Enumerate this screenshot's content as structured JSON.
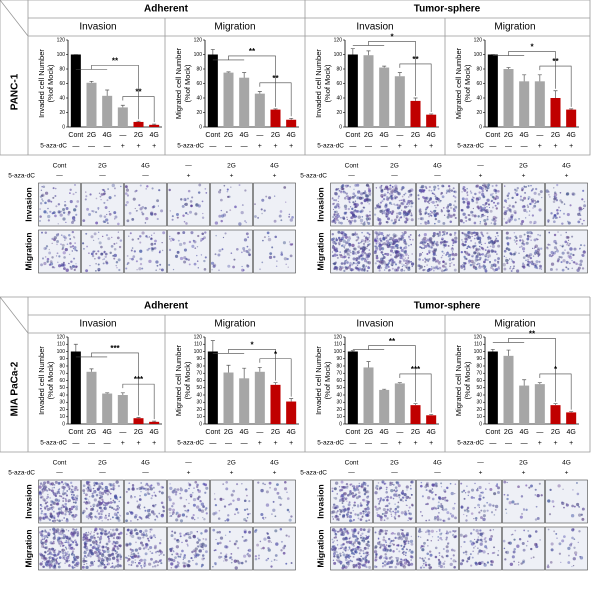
{
  "panels": [
    {
      "cell_line": "PANC-1",
      "conditions": [
        "Adherent",
        "Tumor-sphere"
      ]
    },
    {
      "cell_line": "MIA PaCa-2",
      "conditions": [
        "Adherent",
        "Tumor-sphere"
      ]
    }
  ],
  "images": {
    "columns": [
      "Cont",
      "2G",
      "4G",
      "—",
      "2G",
      "4G"
    ],
    "treatment_label": "5-aza-dC",
    "treatment": [
      "—",
      "—",
      "—",
      "+",
      "+",
      "+"
    ],
    "rows": [
      "Invasion",
      "Migration"
    ]
  },
  "chart_data": [
    {
      "type": "bar",
      "title": "Invasion",
      "ylabel": [
        "Invaded cell Number",
        "(%of Mock)"
      ],
      "categories": [
        "Cont",
        "2G",
        "4G",
        "—",
        "2G",
        "4G"
      ],
      "treatment_label": "5-aza-dC",
      "treatment": [
        "—",
        "—",
        "—",
        "+",
        "+",
        "+"
      ],
      "values": [
        100,
        61,
        43,
        27,
        7,
        3
      ],
      "errors": [
        0,
        2,
        8,
        3,
        1,
        1
      ],
      "colors": [
        "#000000",
        "#a6a6a6",
        "#a6a6a6",
        "#a6a6a6",
        "#c00000",
        "#c00000"
      ],
      "ylim": [
        0,
        120
      ],
      "yticks": [
        0,
        20,
        40,
        60,
        80,
        100,
        120
      ],
      "annotations": [
        "**",
        "**"
      ]
    },
    {
      "type": "bar",
      "title": "Migration",
      "ylabel": [
        "Migrated cell Number",
        "(%of Mock)"
      ],
      "categories": [
        "Cont",
        "2G",
        "4G",
        "—",
        "2G",
        "4G"
      ],
      "treatment_label": "5-aza-dC",
      "treatment": [
        "—",
        "—",
        "—",
        "+",
        "+",
        "+"
      ],
      "values": [
        100,
        75,
        68,
        46,
        24,
        10
      ],
      "errors": [
        7,
        1,
        7,
        3,
        1,
        2
      ],
      "colors": [
        "#000000",
        "#a6a6a6",
        "#a6a6a6",
        "#a6a6a6",
        "#c00000",
        "#c00000"
      ],
      "ylim": [
        0,
        120
      ],
      "yticks": [
        0,
        20,
        40,
        60,
        80,
        100,
        120
      ],
      "annotations": [
        "**",
        "**"
      ]
    },
    {
      "type": "bar",
      "title": "Invasion",
      "ylabel": [
        "Invaded cell Number",
        "(%of Mock)"
      ],
      "categories": [
        "Cont",
        "2G",
        "4G",
        "—",
        "2G",
        "4G"
      ],
      "treatment_label": "5-aza-dC",
      "treatment": [
        "—",
        "—",
        "—",
        "+",
        "+",
        "+"
      ],
      "values": [
        100,
        99,
        82,
        70,
        36,
        17
      ],
      "errors": [
        8,
        6,
        2,
        5,
        4,
        1
      ],
      "colors": [
        "#000000",
        "#a6a6a6",
        "#a6a6a6",
        "#a6a6a6",
        "#c00000",
        "#c00000"
      ],
      "ylim": [
        0,
        120
      ],
      "yticks": [
        0,
        20,
        40,
        60,
        80,
        100,
        120
      ],
      "annotations": [
        "*",
        "**"
      ]
    },
    {
      "type": "bar",
      "title": "Migration",
      "ylabel": [
        "Migrated cell Number",
        "(%of Mock)"
      ],
      "categories": [
        "Cont",
        "2G",
        "4G",
        "—",
        "2G",
        "4G"
      ],
      "treatment_label": "5-aza-dC",
      "treatment": [
        "—",
        "—",
        "—",
        "+",
        "+",
        "+"
      ],
      "values": [
        100,
        80,
        63,
        63,
        40,
        24
      ],
      "errors": [
        0,
        2,
        9,
        9,
        10,
        1
      ],
      "colors": [
        "#000000",
        "#a6a6a6",
        "#a6a6a6",
        "#a6a6a6",
        "#c00000",
        "#c00000"
      ],
      "ylim": [
        0,
        120
      ],
      "yticks": [
        0,
        20,
        40,
        60,
        80,
        100,
        120
      ],
      "annotations": [
        "*",
        "**"
      ]
    },
    {
      "type": "bar",
      "title": "Invasion",
      "ylabel": [
        "Invaded cell Number",
        "(%of Mock)"
      ],
      "categories": [
        "Cont",
        "2G",
        "4G",
        "—",
        "2G",
        "4G"
      ],
      "treatment_label": "5-aza-dC",
      "treatment": [
        "—",
        "—",
        "—",
        "+",
        "+",
        "+"
      ],
      "values": [
        100,
        72,
        42,
        40,
        8,
        3
      ],
      "errors": [
        10,
        4,
        1,
        3,
        1,
        1
      ],
      "colors": [
        "#000000",
        "#a6a6a6",
        "#a6a6a6",
        "#a6a6a6",
        "#c00000",
        "#c00000"
      ],
      "ylim": [
        0,
        120
      ],
      "yticks": [
        0,
        10,
        20,
        30,
        40,
        50,
        60,
        70,
        80,
        90,
        100,
        110,
        120
      ],
      "annotations": [
        "***",
        "***"
      ]
    },
    {
      "type": "bar",
      "title": "Migration",
      "ylabel": [
        "Migrated cell Number",
        "(%of Mock)"
      ],
      "categories": [
        "Cont",
        "2G",
        "4G",
        "—",
        "2G",
        "4G"
      ],
      "treatment_label": "5-aza-dC",
      "treatment": [
        "—",
        "—",
        "—",
        "+",
        "+",
        "+"
      ],
      "values": [
        100,
        71,
        63,
        72,
        54,
        31
      ],
      "errors": [
        15,
        10,
        14,
        6,
        3,
        4
      ],
      "colors": [
        "#000000",
        "#a6a6a6",
        "#a6a6a6",
        "#a6a6a6",
        "#c00000",
        "#c00000"
      ],
      "ylim": [
        0,
        120
      ],
      "yticks": [
        0,
        10,
        20,
        30,
        40,
        50,
        60,
        70,
        80,
        90,
        100,
        110,
        120
      ],
      "annotations": [
        "*",
        "*"
      ]
    },
    {
      "type": "bar",
      "title": "Invasion",
      "ylabel": [
        "Invaded cell Number",
        "(%of Mock)"
      ],
      "categories": [
        "Cont",
        "2G",
        "4G",
        "—",
        "2G",
        "4G"
      ],
      "treatment_label": "5-aza-dC",
      "treatment": [
        "—",
        "—",
        "—",
        "+",
        "+",
        "+"
      ],
      "values": [
        100,
        78,
        47,
        56,
        26,
        12
      ],
      "errors": [
        1,
        8,
        1,
        1,
        2,
        1
      ],
      "colors": [
        "#000000",
        "#a6a6a6",
        "#a6a6a6",
        "#a6a6a6",
        "#c00000",
        "#c00000"
      ],
      "ylim": [
        0,
        120
      ],
      "yticks": [
        0,
        10,
        20,
        30,
        40,
        50,
        60,
        70,
        80,
        90,
        100,
        110,
        120
      ],
      "annotations": [
        "**",
        "***"
      ]
    },
    {
      "type": "bar",
      "title": "Migration",
      "ylabel": [
        "Migrated cell Number",
        "(%of Mock)"
      ],
      "categories": [
        "Cont",
        "2G",
        "4G",
        "—",
        "2G",
        "4G"
      ],
      "treatment_label": "5-aza-dC",
      "treatment": [
        "—",
        "—",
        "—",
        "+",
        "+",
        "+"
      ],
      "values": [
        100,
        94,
        53,
        55,
        26,
        16
      ],
      "errors": [
        3,
        8,
        8,
        2,
        2,
        1
      ],
      "colors": [
        "#000000",
        "#a6a6a6",
        "#a6a6a6",
        "#a6a6a6",
        "#c00000",
        "#c00000"
      ],
      "ylim": [
        0,
        120
      ],
      "yticks": [
        0,
        10,
        20,
        30,
        40,
        50,
        60,
        70,
        80,
        90,
        100,
        110,
        120
      ],
      "annotations": [
        "**",
        "*"
      ]
    }
  ]
}
